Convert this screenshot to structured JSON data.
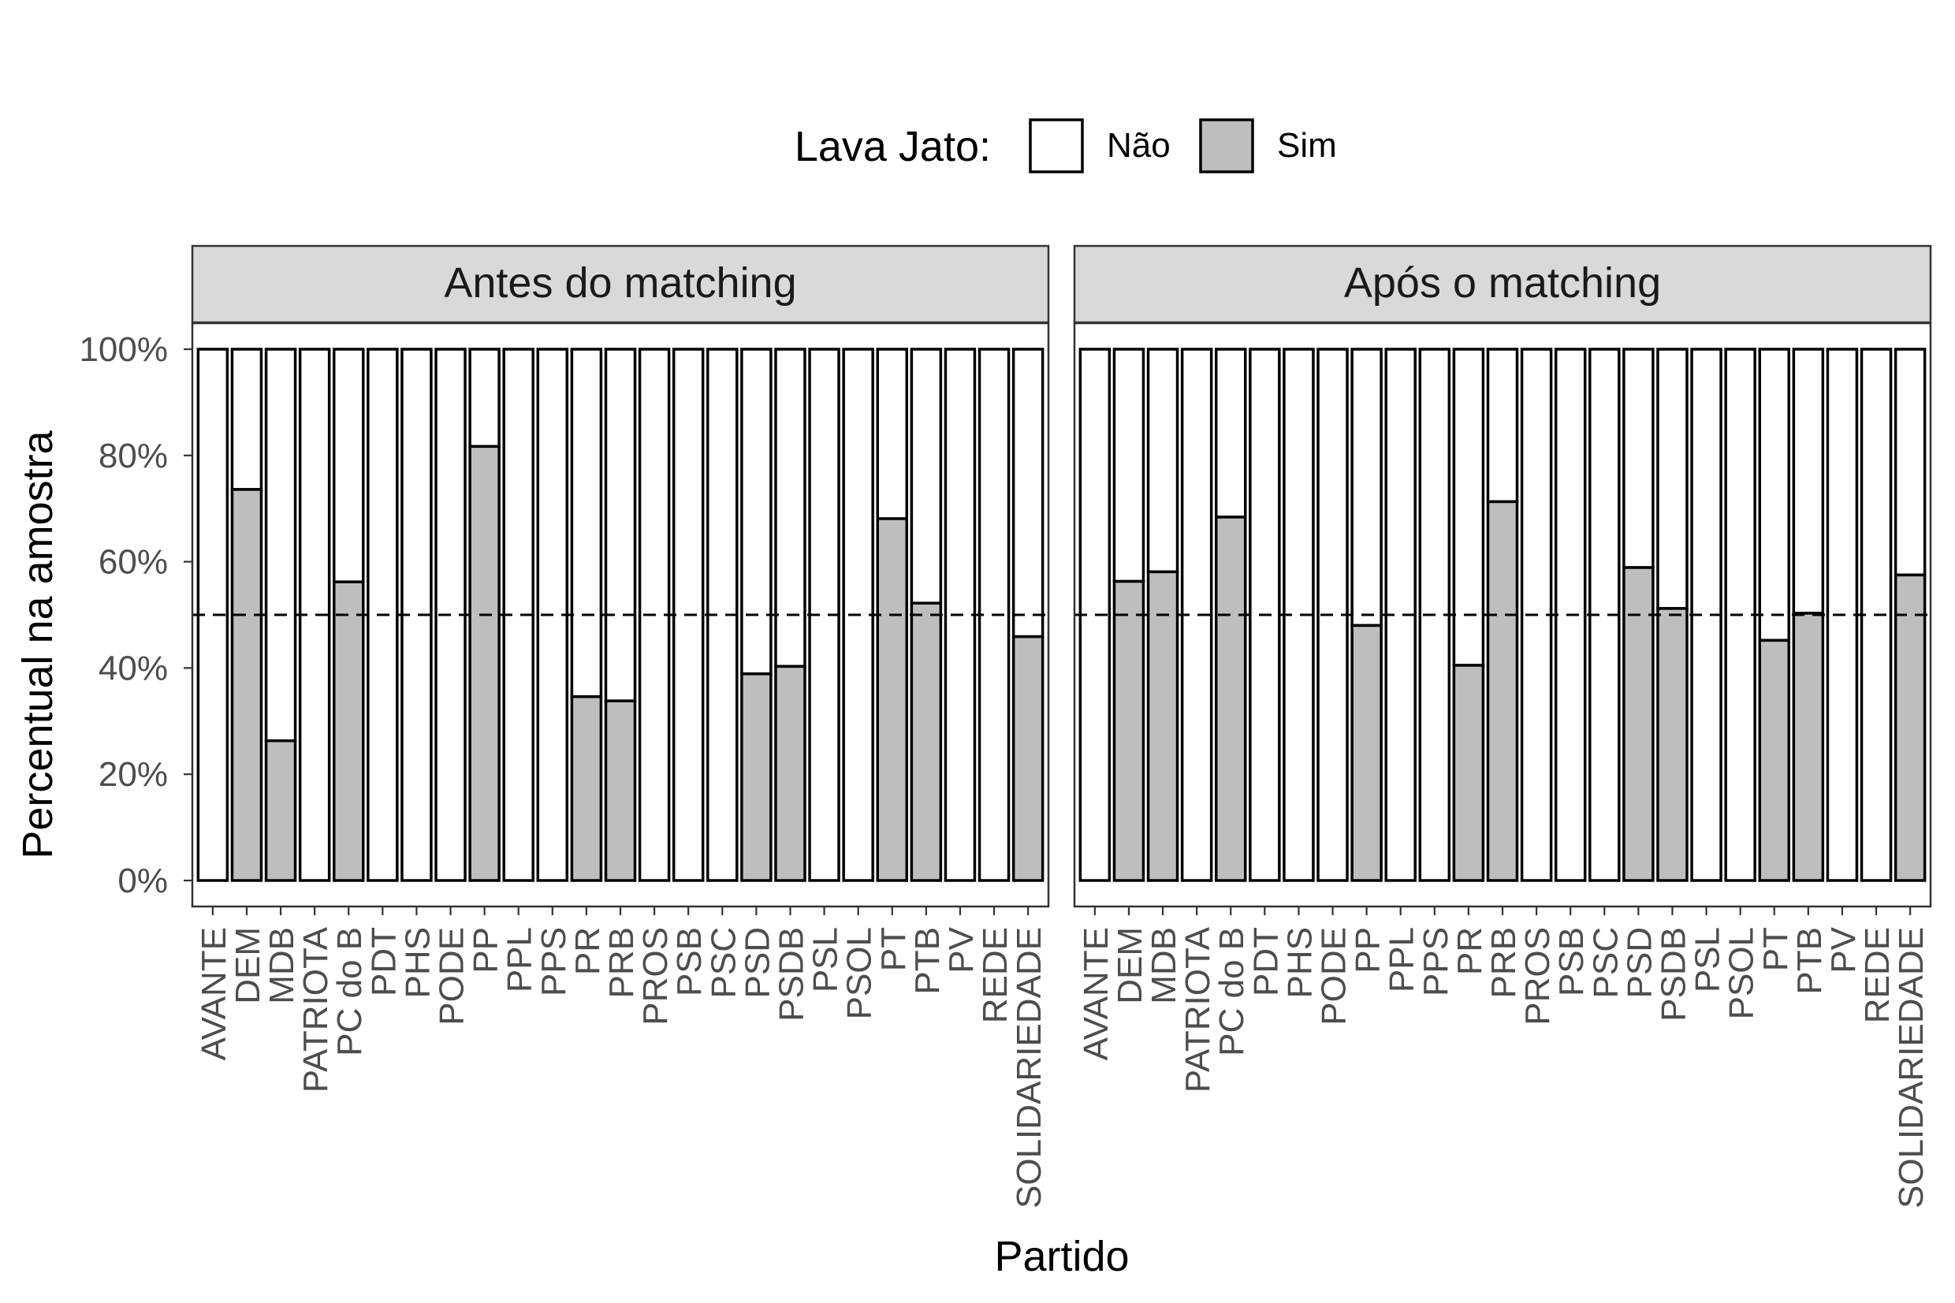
{
  "legend": {
    "title": "Lava Jato:",
    "items": [
      {
        "label": "Não",
        "color": "#ffffff"
      },
      {
        "label": "Sim",
        "color": "#bebebe"
      }
    ]
  },
  "colors": {
    "nao": "#ffffff",
    "sim": "#bebebe",
    "strip": "#d9d9d9",
    "frame": "#333333",
    "bar_outline": "#000000"
  },
  "chart_data": {
    "type": "bar",
    "stacked": true,
    "categories": [
      "AVANTE",
      "DEM",
      "MDB",
      "PATRIOTA",
      "PC do B",
      "PDT",
      "PHS",
      "PODE",
      "PP",
      "PPL",
      "PPS",
      "PR",
      "PRB",
      "PROS",
      "PSB",
      "PSC",
      "PSD",
      "PSDB",
      "PSL",
      "PSOL",
      "PT",
      "PTB",
      "PV",
      "REDE",
      "SOLIDARIEDADE"
    ],
    "xlabel": "Partido",
    "ylabel": "Percentual na amostra",
    "ylim": [
      0,
      100
    ],
    "yticks": [
      "0%",
      "20%",
      "40%",
      "60%",
      "80%",
      "100%"
    ],
    "reference_line": {
      "y": 50,
      "style": "dashed"
    },
    "legend_position": "top",
    "grid": false,
    "panels": [
      {
        "title": "Antes do matching",
        "series": [
          {
            "name": "Sim",
            "values": [
              0,
              73.6,
              26.3,
              0,
              56.2,
              0,
              0,
              0,
              81.7,
              0,
              0,
              34.6,
              33.8,
              0,
              0,
              0,
              38.9,
              40.3,
              0,
              0,
              68.1,
              52.2,
              0,
              0,
              45.9
            ]
          },
          {
            "name": "Não",
            "values": [
              100,
              26.4,
              73.7,
              100,
              43.8,
              100,
              100,
              100,
              18.3,
              100,
              100,
              65.4,
              66.2,
              100,
              100,
              100,
              61.1,
              59.7,
              100,
              100,
              31.9,
              47.8,
              100,
              100,
              54.1
            ]
          }
        ]
      },
      {
        "title": "Após o matching",
        "series": [
          {
            "name": "Sim",
            "values": [
              0,
              56.3,
              58.1,
              0,
              68.4,
              0,
              0,
              0,
              48.0,
              0,
              0,
              40.5,
              71.3,
              0,
              0,
              0,
              58.9,
              51.2,
              0,
              0,
              45.2,
              50.3,
              0,
              0,
              57.5
            ]
          },
          {
            "name": "Não",
            "values": [
              100,
              43.7,
              41.9,
              100,
              31.6,
              100,
              100,
              100,
              52.0,
              100,
              100,
              59.5,
              28.7,
              100,
              100,
              100,
              41.1,
              48.8,
              100,
              100,
              54.8,
              49.7,
              100,
              100,
              42.5
            ]
          }
        ]
      }
    ]
  }
}
